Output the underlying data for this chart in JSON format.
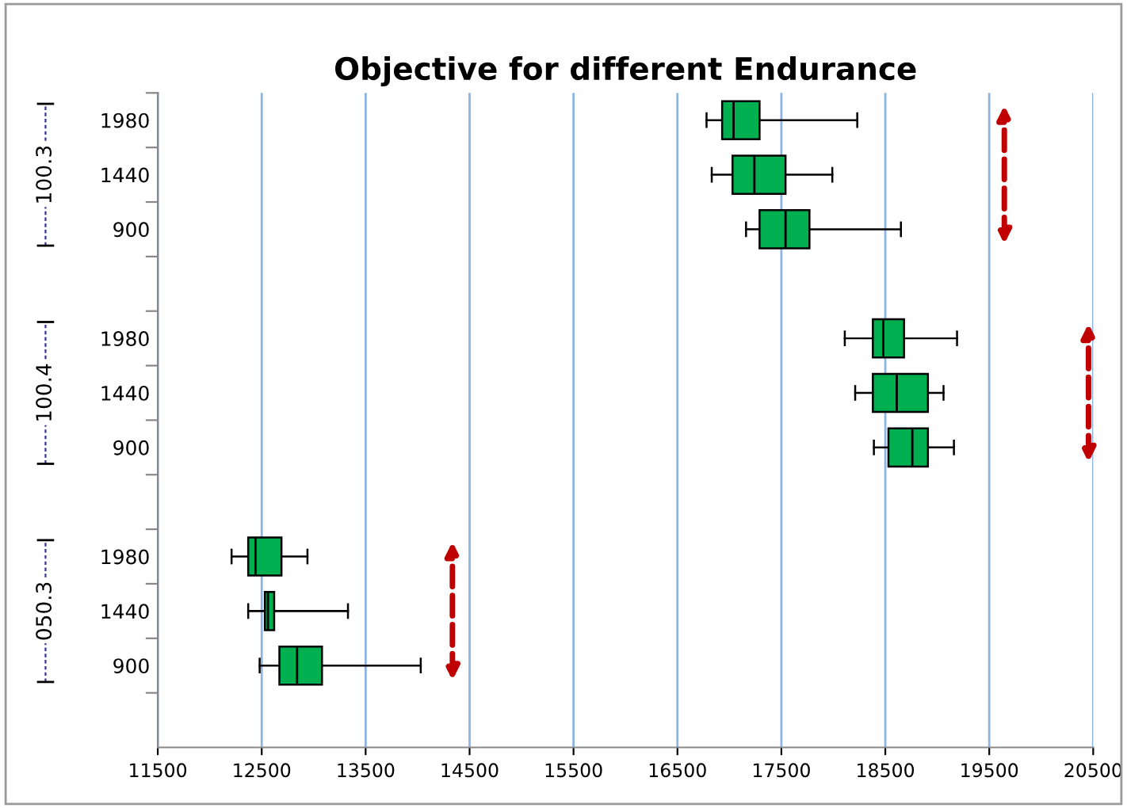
{
  "chart_data": {
    "type": "box",
    "orientation": "horizontal",
    "title": "Objective for different Endurance",
    "categories": [
      "1980",
      "1440",
      "900",
      null,
      "1980",
      "1440",
      "900",
      null,
      "1980",
      "1440",
      "900",
      null
    ],
    "annotations": [
      "100.3",
      "100.4",
      "050.3"
    ],
    "boxes": [
      {
        "low": 16780,
        "q1": 16930,
        "median": 17040,
        "q3": 17290,
        "high": 18230
      },
      {
        "low": 16830,
        "q1": 17030,
        "median": 17240,
        "q3": 17540,
        "high": 17990
      },
      {
        "low": 17160,
        "q1": 17290,
        "median": 17540,
        "q3": 17770,
        "high": 18650
      },
      null,
      {
        "low": 18110,
        "q1": 18380,
        "median": 18480,
        "q3": 18680,
        "high": 19190
      },
      {
        "low": 18210,
        "q1": 18380,
        "median": 18610,
        "q3": 18910,
        "high": 19060
      },
      {
        "low": 18390,
        "q1": 18530,
        "median": 18760,
        "q3": 18910,
        "high": 19160
      },
      null,
      {
        "low": 12210,
        "q1": 12370,
        "median": 12440,
        "q3": 12690,
        "high": 12940
      },
      {
        "low": 12370,
        "q1": 12530,
        "median": 12560,
        "q3": 12620,
        "high": 13330
      },
      {
        "low": 12480,
        "q1": 12670,
        "median": 12840,
        "q3": 13080,
        "high": 14030
      },
      null
    ],
    "color": "#00b050",
    "xlim": [
      11500,
      20500
    ],
    "xticks": [
      11500,
      12500,
      13500,
      14500,
      15500,
      16500,
      17500,
      18500,
      19500,
      20500
    ],
    "grid": "x"
  }
}
